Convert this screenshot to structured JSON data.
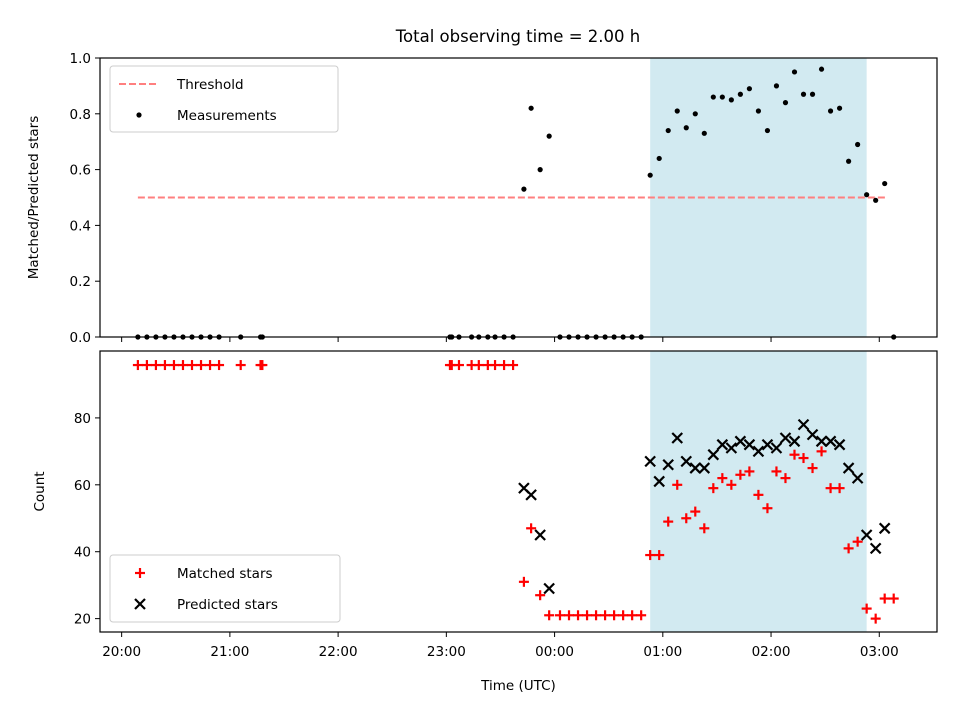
{
  "chart_data": [
    {
      "type": "scatter",
      "title": "Total observing time = 2.00 h",
      "ylabel": "Matched/Predicted stars",
      "xlabel": "",
      "ylim": [
        0,
        1.0
      ],
      "yticks": [
        "0.0",
        "0.2",
        "0.4",
        "0.6",
        "0.8",
        "1.0"
      ],
      "threshold": 0.5,
      "threshold_x_range": [
        "20:09",
        "03:04"
      ],
      "highlight_interval": [
        "00:53",
        "02:53"
      ],
      "colors": {
        "threshold": "#ff7f7f",
        "measurements": "#000000",
        "highlight": "#add8e6"
      },
      "legend": {
        "position": "upper-left",
        "threshold_label": "Threshold",
        "measurements_label": "Measurements"
      },
      "series": [
        {
          "name": "Measurements",
          "points": [
            [
              "20:09",
              0.0
            ],
            [
              "20:14",
              0.0
            ],
            [
              "20:19",
              0.0
            ],
            [
              "20:24",
              0.0
            ],
            [
              "20:29",
              0.0
            ],
            [
              "20:34",
              0.0
            ],
            [
              "20:39",
              0.0
            ],
            [
              "20:44",
              0.0
            ],
            [
              "20:49",
              0.0
            ],
            [
              "20:54",
              0.0
            ],
            [
              "21:06",
              0.0
            ],
            [
              "21:17",
              0.0
            ],
            [
              "21:18",
              0.0
            ],
            [
              "23:02",
              0.0
            ],
            [
              "23:03",
              0.0
            ],
            [
              "23:07",
              0.0
            ],
            [
              "23:14",
              0.0
            ],
            [
              "23:18",
              0.0
            ],
            [
              "23:23",
              0.0
            ],
            [
              "23:27",
              0.0
            ],
            [
              "23:32",
              0.0
            ],
            [
              "23:37",
              0.0
            ],
            [
              "23:43",
              0.53
            ],
            [
              "23:47",
              0.82
            ],
            [
              "23:52",
              0.6
            ],
            [
              "23:57",
              0.72
            ],
            [
              "00:03",
              0.0
            ],
            [
              "00:08",
              0.0
            ],
            [
              "00:13",
              0.0
            ],
            [
              "00:18",
              0.0
            ],
            [
              "00:23",
              0.0
            ],
            [
              "00:28",
              0.0
            ],
            [
              "00:33",
              0.0
            ],
            [
              "00:38",
              0.0
            ],
            [
              "00:43",
              0.0
            ],
            [
              "00:48",
              0.0
            ],
            [
              "00:53",
              0.58
            ],
            [
              "00:58",
              0.64
            ],
            [
              "01:03",
              0.74
            ],
            [
              "01:08",
              0.81
            ],
            [
              "01:13",
              0.75
            ],
            [
              "01:18",
              0.8
            ],
            [
              "01:23",
              0.73
            ],
            [
              "01:28",
              0.86
            ],
            [
              "01:33",
              0.86
            ],
            [
              "01:38",
              0.85
            ],
            [
              "01:43",
              0.87
            ],
            [
              "01:48",
              0.89
            ],
            [
              "01:53",
              0.81
            ],
            [
              "01:58",
              0.74
            ],
            [
              "02:03",
              0.9
            ],
            [
              "02:08",
              0.84
            ],
            [
              "02:13",
              0.95
            ],
            [
              "02:18",
              0.87
            ],
            [
              "02:23",
              0.87
            ],
            [
              "02:28",
              0.96
            ],
            [
              "02:33",
              0.81
            ],
            [
              "02:38",
              0.82
            ],
            [
              "02:43",
              0.63
            ],
            [
              "02:48",
              0.69
            ],
            [
              "02:53",
              0.51
            ],
            [
              "02:58",
              0.49
            ],
            [
              "03:03",
              0.55
            ],
            [
              "03:08",
              0.0
            ]
          ]
        }
      ]
    },
    {
      "type": "scatter",
      "title": "",
      "xlabel": "Time (UTC)",
      "ylabel": "Count",
      "ylim": [
        16,
        100
      ],
      "yticks": [
        "20",
        "40",
        "60",
        "80"
      ],
      "xticks": [
        "20:00",
        "21:00",
        "22:00",
        "23:00",
        "00:00",
        "01:00",
        "02:00",
        "03:00"
      ],
      "highlight_interval": [
        "00:53",
        "02:53"
      ],
      "colors": {
        "matched": "#ff0000",
        "predicted": "#000000",
        "highlight": "#add8e6"
      },
      "legend": {
        "position": "lower-left",
        "matched_label": "Matched stars",
        "predicted_label": "Predicted stars"
      },
      "series": [
        {
          "name": "Matched stars",
          "points": [
            [
              "20:09",
              95.8
            ],
            [
              "20:14",
              95.8
            ],
            [
              "20:19",
              95.8
            ],
            [
              "20:24",
              95.8
            ],
            [
              "20:29",
              95.8
            ],
            [
              "20:34",
              95.8
            ],
            [
              "20:39",
              95.8
            ],
            [
              "20:44",
              95.8
            ],
            [
              "20:49",
              95.8
            ],
            [
              "20:54",
              95.8
            ],
            [
              "21:06",
              95.8
            ],
            [
              "21:17",
              95.8
            ],
            [
              "21:18",
              95.8
            ],
            [
              "23:02",
              95.8
            ],
            [
              "23:03",
              95.8
            ],
            [
              "23:07",
              95.8
            ],
            [
              "23:14",
              95.8
            ],
            [
              "23:18",
              95.8
            ],
            [
              "23:23",
              95.8
            ],
            [
              "23:27",
              95.8
            ],
            [
              "23:32",
              95.8
            ],
            [
              "23:37",
              95.8
            ],
            [
              "23:43",
              31
            ],
            [
              "23:47",
              47
            ],
            [
              "23:52",
              27
            ],
            [
              "23:57",
              21
            ],
            [
              "00:03",
              21
            ],
            [
              "00:08",
              21
            ],
            [
              "00:13",
              21
            ],
            [
              "00:18",
              21
            ],
            [
              "00:23",
              21
            ],
            [
              "00:28",
              21
            ],
            [
              "00:33",
              21
            ],
            [
              "00:38",
              21
            ],
            [
              "00:43",
              21
            ],
            [
              "00:48",
              21
            ],
            [
              "00:53",
              39
            ],
            [
              "00:58",
              39
            ],
            [
              "01:03",
              49
            ],
            [
              "01:08",
              60
            ],
            [
              "01:13",
              50
            ],
            [
              "01:18",
              52
            ],
            [
              "01:23",
              47
            ],
            [
              "01:28",
              59
            ],
            [
              "01:33",
              62
            ],
            [
              "01:38",
              60
            ],
            [
              "01:43",
              63
            ],
            [
              "01:48",
              64
            ],
            [
              "01:53",
              57
            ],
            [
              "01:58",
              53
            ],
            [
              "02:03",
              64
            ],
            [
              "02:08",
              62
            ],
            [
              "02:13",
              69
            ],
            [
              "02:18",
              68
            ],
            [
              "02:23",
              65
            ],
            [
              "02:28",
              70
            ],
            [
              "02:33",
              59
            ],
            [
              "02:38",
              59
            ],
            [
              "02:43",
              41
            ],
            [
              "02:48",
              43
            ],
            [
              "02:53",
              23
            ],
            [
              "02:58",
              20
            ],
            [
              "03:03",
              26
            ],
            [
              "03:08",
              26
            ]
          ]
        },
        {
          "name": "Predicted stars",
          "points": [
            [
              "23:43",
              59
            ],
            [
              "23:47",
              57
            ],
            [
              "23:52",
              45
            ],
            [
              "23:57",
              29
            ],
            [
              "00:53",
              67
            ],
            [
              "00:58",
              61
            ],
            [
              "01:03",
              66
            ],
            [
              "01:08",
              74
            ],
            [
              "01:13",
              67
            ],
            [
              "01:18",
              65
            ],
            [
              "01:23",
              65
            ],
            [
              "01:28",
              69
            ],
            [
              "01:33",
              72
            ],
            [
              "01:38",
              71
            ],
            [
              "01:43",
              73
            ],
            [
              "01:48",
              72
            ],
            [
              "01:53",
              70
            ],
            [
              "01:58",
              72
            ],
            [
              "02:03",
              71
            ],
            [
              "02:08",
              74
            ],
            [
              "02:13",
              73
            ],
            [
              "02:18",
              78
            ],
            [
              "02:23",
              75
            ],
            [
              "02:28",
              73
            ],
            [
              "02:33",
              73
            ],
            [
              "02:38",
              72
            ],
            [
              "02:43",
              65
            ],
            [
              "02:48",
              62
            ],
            [
              "02:53",
              45
            ],
            [
              "02:58",
              41
            ],
            [
              "03:03",
              47
            ]
          ]
        }
      ]
    }
  ]
}
